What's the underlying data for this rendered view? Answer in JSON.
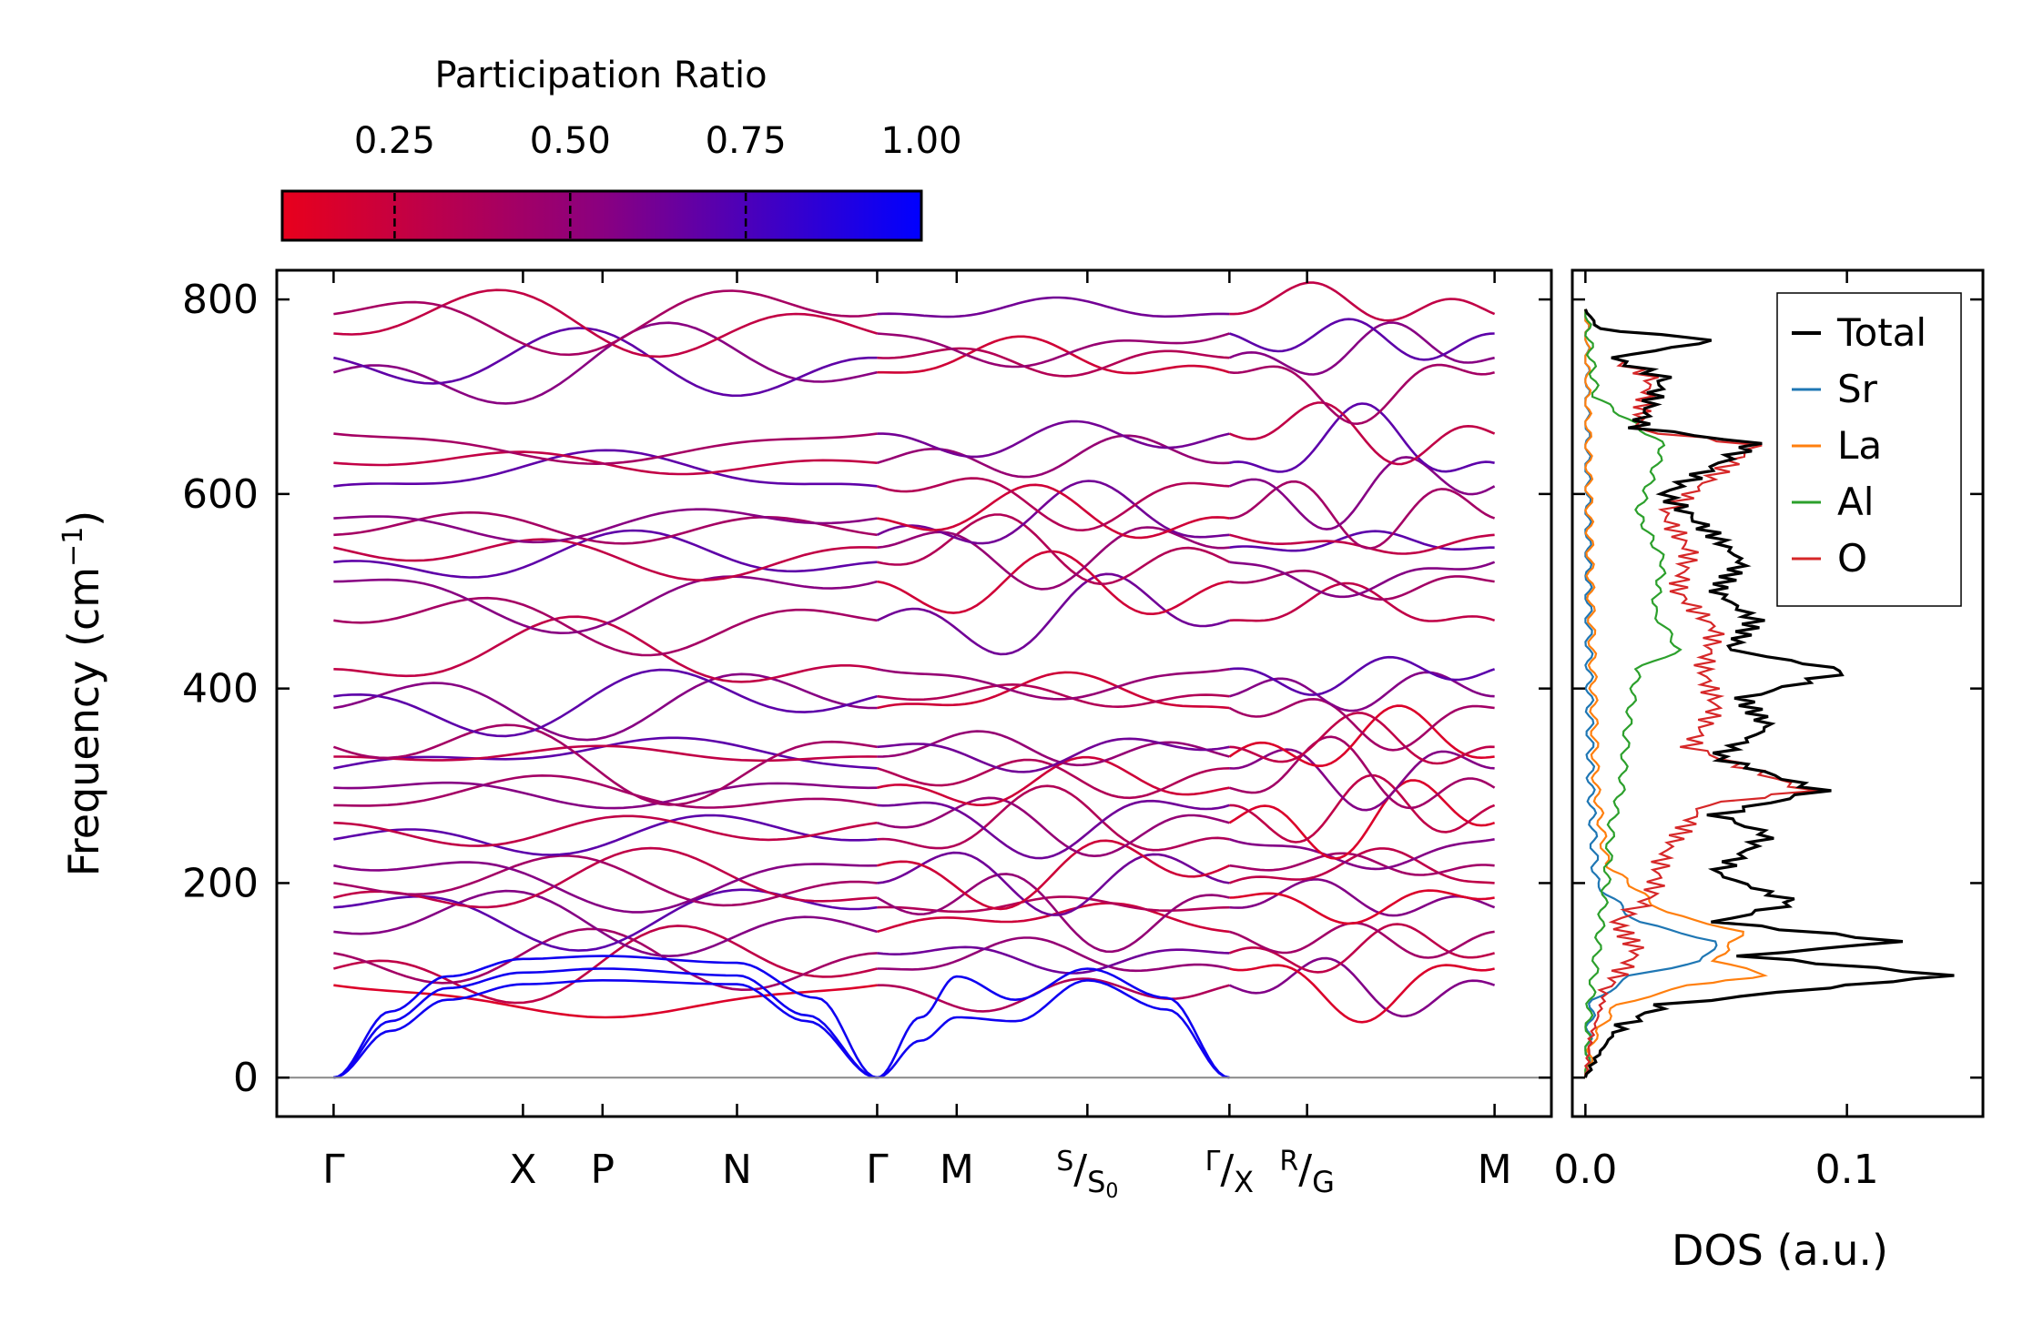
{
  "chart_data": [
    {
      "type": "line",
      "panel": "band-structure",
      "title": "",
      "xlabel": "",
      "ylabel": "Frequency (cm⁻¹)",
      "ylabel_parts": {
        "main": "Frequency (cm",
        "sup": "−1",
        "close": ")"
      },
      "ylim": [
        -40,
        830
      ],
      "yticks": [
        0,
        200,
        400,
        600,
        800
      ],
      "ytick_labels": [
        "0",
        "200",
        "400",
        "600",
        "800"
      ],
      "grid": false,
      "zero_line": true,
      "segments": [
        {
          "points": [
            "Γ",
            "X",
            "P",
            "N",
            "Γ"
          ],
          "kpos": [
            0,
            1.0,
            1.42,
            2.13,
            2.87
          ]
        },
        {
          "points": [
            "Γ",
            "M",
            "S",
            "Γ"
          ],
          "kpos": [
            2.87,
            3.29,
            3.98,
            4.73
          ]
        },
        {
          "points": [
            "X",
            "R",
            "M"
          ],
          "kpos": [
            4.73,
            5.14,
            6.13
          ]
        }
      ],
      "xticks": [
        {
          "k": 0,
          "label": "Γ"
        },
        {
          "k": 1.0,
          "label": "X"
        },
        {
          "k": 1.42,
          "label": "P"
        },
        {
          "k": 2.13,
          "label": "N"
        },
        {
          "k": 2.87,
          "label": "Γ"
        },
        {
          "k": 3.29,
          "label": "M"
        },
        {
          "k": 3.98,
          "label": "S",
          "sub": "S",
          "subsub": "0"
        },
        {
          "k": 4.73,
          "label": "Γ",
          "sub": "X"
        },
        {
          "k": 5.14,
          "label": "R",
          "sub": "G"
        },
        {
          "k": 6.13,
          "label": "M"
        }
      ],
      "acoustic_branches": [
        {
          "name": "acoustic-1",
          "points": [
            [
              0,
              0
            ],
            [
              0.3,
              48
            ],
            [
              0.6,
              80
            ],
            [
              1.0,
              96
            ],
            [
              1.42,
              100
            ],
            [
              2.13,
              96
            ],
            [
              2.5,
              58
            ],
            [
              2.87,
              0
            ]
          ]
        },
        {
          "name": "acoustic-2",
          "points": [
            [
              0,
              0
            ],
            [
              0.3,
              58
            ],
            [
              0.6,
              92
            ],
            [
              1.0,
              108
            ],
            [
              1.42,
              112
            ],
            [
              2.13,
              105
            ],
            [
              2.5,
              64
            ],
            [
              2.87,
              0
            ]
          ]
        },
        {
          "name": "acoustic-3",
          "points": [
            [
              0,
              0
            ],
            [
              0.3,
              68
            ],
            [
              0.6,
              104
            ],
            [
              1.0,
              122
            ],
            [
              1.42,
              125
            ],
            [
              2.13,
              118
            ],
            [
              2.55,
              82
            ],
            [
              2.87,
              0
            ]
          ]
        },
        {
          "name": "acoustic-4",
          "points": [
            [
              2.87,
              0
            ],
            [
              3.1,
              62
            ],
            [
              3.29,
              104
            ],
            [
              3.6,
              80
            ],
            [
              3.98,
              112
            ],
            [
              4.4,
              82
            ],
            [
              4.73,
              0
            ]
          ]
        },
        {
          "name": "acoustic-5",
          "points": [
            [
              2.87,
              0
            ],
            [
              3.1,
              38
            ],
            [
              3.29,
              62
            ],
            [
              3.6,
              58
            ],
            [
              3.98,
              100
            ],
            [
              4.4,
              70
            ],
            [
              4.73,
              0
            ]
          ]
        }
      ],
      "optical_levels": [
        95,
        112,
        128,
        150,
        175,
        185,
        200,
        218,
        245,
        262,
        280,
        298,
        318,
        330,
        340,
        380,
        392,
        420,
        470,
        510,
        530,
        545,
        558,
        575,
        608,
        632,
        662,
        725,
        740,
        765,
        785
      ],
      "colorbar": {
        "label": "Participation Ratio",
        "ticks": [
          0.25,
          0.5,
          0.75,
          1.0
        ],
        "tick_labels": [
          "0.25",
          "0.50",
          "0.75",
          "1.00"
        ],
        "range": [
          0.09,
          1.0
        ],
        "color_low": "#e8001c",
        "color_mid": "#8a0080",
        "color_high": "#0000ff"
      }
    },
    {
      "type": "line",
      "panel": "dos",
      "xlabel": "DOS (a.u.)",
      "xlim": [
        -0.005,
        0.152
      ],
      "xticks": [
        0.0,
        0.1
      ],
      "xtick_labels": [
        "0.0",
        "0.1"
      ],
      "ylim": [
        -40,
        830
      ],
      "legend_position": "top-right",
      "series": [
        {
          "name": "Total",
          "color": "#000000",
          "points": [
            [
              0,
              0
            ],
            [
              0.004,
              20
            ],
            [
              0.012,
              50
            ],
            [
              0.03,
              75
            ],
            [
              0.09,
              92
            ],
            [
              0.14,
              105
            ],
            [
              0.06,
              125
            ],
            [
              0.12,
              140
            ],
            [
              0.05,
              160
            ],
            [
              0.08,
              180
            ],
            [
              0.05,
              210
            ],
            [
              0.07,
              250
            ],
            [
              0.05,
              270
            ],
            [
              0.09,
              295
            ],
            [
              0.05,
              330
            ],
            [
              0.07,
              360
            ],
            [
              0.06,
              390
            ],
            [
              0.1,
              418
            ],
            [
              0.055,
              440
            ],
            [
              0.065,
              470
            ],
            [
              0.05,
              500
            ],
            [
              0.06,
              530
            ],
            [
              0.048,
              560
            ],
            [
              0.03,
              600
            ],
            [
              0.065,
              652
            ],
            [
              0.02,
              668
            ],
            [
              0.03,
              720
            ],
            [
              0.01,
              740
            ],
            [
              0.05,
              758
            ],
            [
              0.005,
              770
            ],
            [
              0,
              790
            ]
          ]
        },
        {
          "name": "Sr",
          "color": "#1f77b4",
          "points": [
            [
              0,
              0
            ],
            [
              0.001,
              40
            ],
            [
              0.003,
              80
            ],
            [
              0.018,
              105
            ],
            [
              0.045,
              120
            ],
            [
              0.05,
              140
            ],
            [
              0.02,
              160
            ],
            [
              0.004,
              200
            ],
            [
              0.002,
              300
            ],
            [
              0.001,
              500
            ],
            [
              0,
              790
            ]
          ]
        },
        {
          "name": "La",
          "color": "#ff7f0e",
          "points": [
            [
              0,
              0
            ],
            [
              0.003,
              40
            ],
            [
              0.012,
              75
            ],
            [
              0.04,
              95
            ],
            [
              0.07,
              105
            ],
            [
              0.05,
              120
            ],
            [
              0.06,
              150
            ],
            [
              0.03,
              170
            ],
            [
              0.008,
              220
            ],
            [
              0.004,
              300
            ],
            [
              0.002,
              500
            ],
            [
              0,
              790
            ]
          ]
        },
        {
          "name": "Al",
          "color": "#2ca02c",
          "points": [
            [
              0,
              0
            ],
            [
              0.001,
              60
            ],
            [
              0.004,
              120
            ],
            [
              0.008,
              200
            ],
            [
              0.01,
              260
            ],
            [
              0.014,
              300
            ],
            [
              0.016,
              360
            ],
            [
              0.02,
              420
            ],
            [
              0.036,
              440
            ],
            [
              0.026,
              480
            ],
            [
              0.03,
              530
            ],
            [
              0.02,
              580
            ],
            [
              0.03,
              650
            ],
            [
              0.004,
              700
            ],
            [
              0,
              790
            ]
          ]
        },
        {
          "name": "O",
          "color": "#d62728",
          "points": [
            [
              0,
              0
            ],
            [
              0.002,
              40
            ],
            [
              0.008,
              90
            ],
            [
              0.02,
              130
            ],
            [
              0.012,
              160
            ],
            [
              0.025,
              185
            ],
            [
              0.03,
              230
            ],
            [
              0.045,
              280
            ],
            [
              0.085,
              295
            ],
            [
              0.04,
              340
            ],
            [
              0.05,
              380
            ],
            [
              0.045,
              420
            ],
            [
              0.05,
              460
            ],
            [
              0.035,
              500
            ],
            [
              0.04,
              540
            ],
            [
              0.03,
              580
            ],
            [
              0.065,
              650
            ],
            [
              0.02,
              666
            ],
            [
              0.025,
              720
            ],
            [
              0.01,
              740
            ],
            [
              0.05,
              758
            ],
            [
              0.005,
              770
            ],
            [
              0,
              790
            ]
          ]
        }
      ]
    }
  ]
}
